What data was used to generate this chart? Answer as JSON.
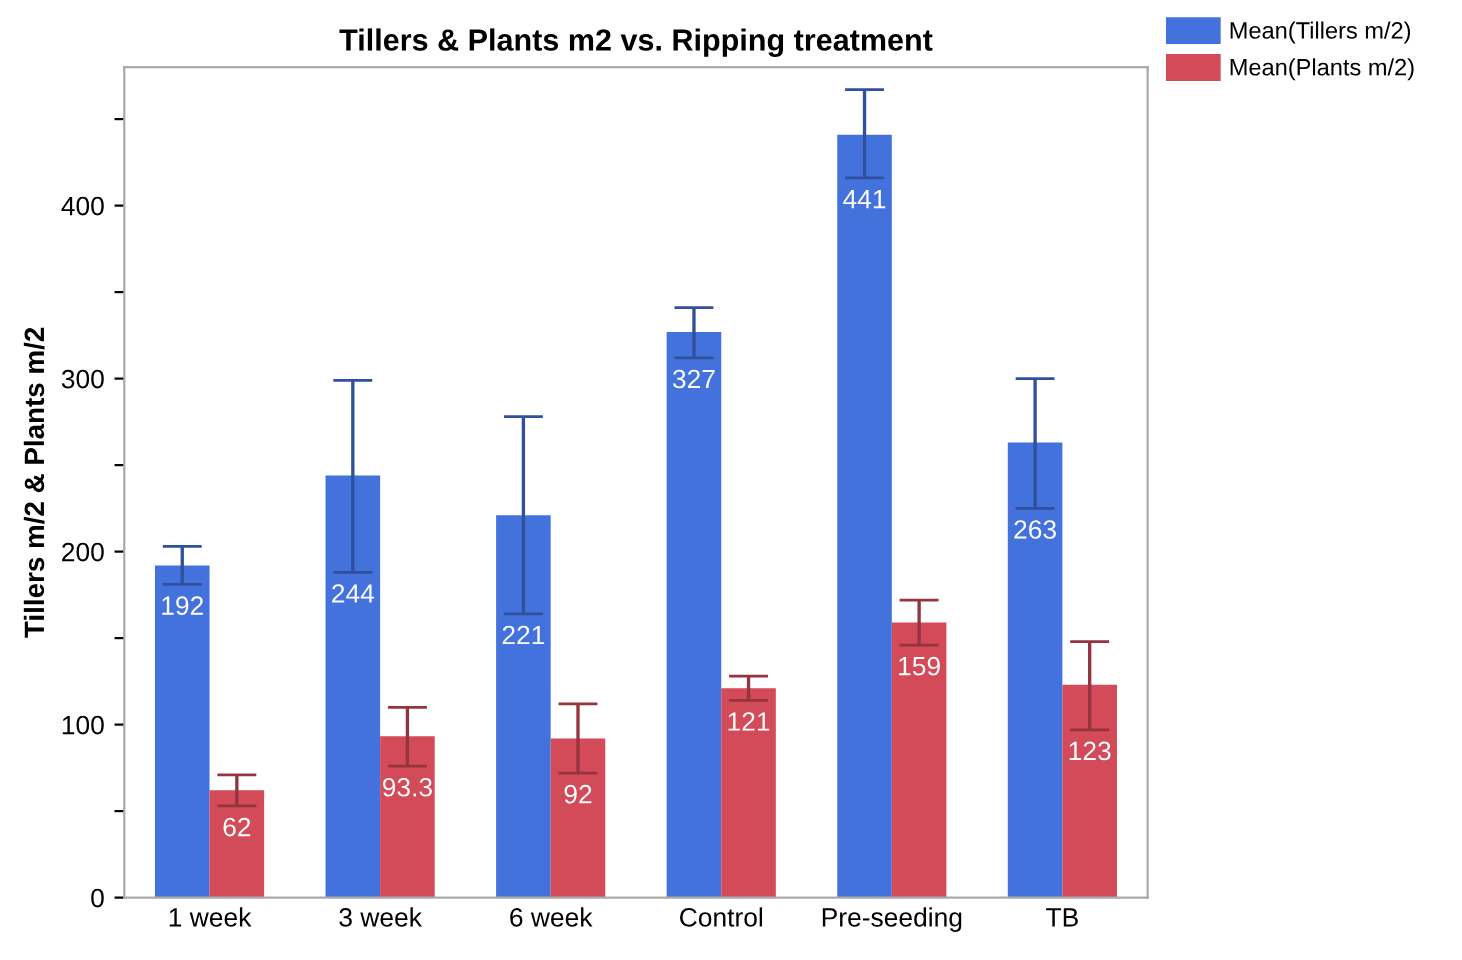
{
  "chart_data": {
    "type": "bar",
    "title": "Tillers & Plants m2 vs. Ripping treatment",
    "ylabel": "Tillers m/2 & Plants m/2",
    "categories": [
      "1 week",
      "3 week",
      "6 week",
      "Control",
      "Pre-seeding",
      "TB"
    ],
    "series": [
      {
        "name": "Mean(Tillers m/2)",
        "color": "#4472dd",
        "values": [
          192,
          244,
          221,
          327,
          441,
          263
        ],
        "errors": [
          [
            181,
            203
          ],
          [
            188,
            299
          ],
          [
            164,
            278
          ],
          [
            312,
            341
          ],
          [
            416,
            467
          ],
          [
            225,
            300
          ]
        ]
      },
      {
        "name": "Mean(Plants m/2)",
        "color": "#d34a59",
        "values": [
          62,
          93.3,
          92,
          121,
          159,
          123
        ],
        "errors": [
          [
            53,
            71
          ],
          [
            76,
            110
          ],
          [
            72,
            112
          ],
          [
            114,
            128
          ],
          [
            146,
            172
          ],
          [
            97,
            148
          ]
        ]
      }
    ],
    "ylim": [
      0,
      480
    ],
    "yticks": [
      0,
      {
        "value": 50,
        "label": null
      },
      100,
      {
        "value": 150,
        "label": null
      },
      200,
      {
        "value": 250,
        "label": null
      },
      300,
      {
        "value": 350,
        "label": null
      },
      400,
      {
        "value": 450,
        "label": null
      }
    ],
    "data_labels": true,
    "legend": "top right",
    "grid": false
  }
}
